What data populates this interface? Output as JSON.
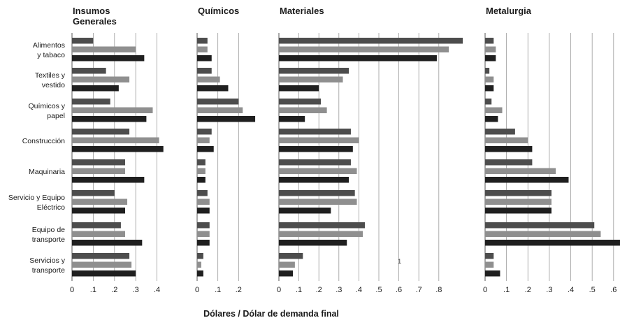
{
  "chart_data": {
    "type": "bar",
    "orientation": "horizontal",
    "xlabel": "Dólares / Dólar de demanda final",
    "categories": [
      "Alimentos y tabaco",
      "Textiles y vestido",
      "Químicos y papel",
      "Construcción",
      "Maquinaria",
      "Servicio y Equipo Eléctrico",
      "Equipo de transporte",
      "Servicios y transporte"
    ],
    "category_lines": [
      [
        "Alimentos",
        "y tabaco"
      ],
      [
        "Textiles y",
        "vestido"
      ],
      [
        "Químicos y",
        "papel"
      ],
      [
        "Construcción"
      ],
      [
        "Maquinaria"
      ],
      [
        "Servicio y Equipo",
        "Eléctrico"
      ],
      [
        "Equipo de",
        "transporte"
      ],
      [
        "Servicios y",
        "transporte"
      ]
    ],
    "series_colors": [
      "#4d4d4d",
      "#8f8f8f",
      "#1f1f1f"
    ],
    "stray_annotation": "1",
    "panels": [
      {
        "title_lines": [
          "Insumos",
          "Generales"
        ],
        "xlim": [
          0,
          0.5
        ],
        "ticks": [
          0,
          0.1,
          0.2,
          0.3,
          0.4
        ],
        "tick_labels": [
          "0",
          ".1",
          ".2",
          ".3",
          ".4"
        ],
        "series": [
          {
            "values": [
              0.1,
              0.16,
              0.18,
              0.27,
              0.25,
              0.2,
              0.23,
              0.27
            ]
          },
          {
            "values": [
              0.3,
              0.27,
              0.38,
              0.41,
              0.25,
              0.26,
              0.25,
              0.28
            ]
          },
          {
            "values": [
              0.34,
              0.22,
              0.35,
              0.43,
              0.34,
              0.25,
              0.33,
              0.3
            ]
          }
        ]
      },
      {
        "title_lines": [
          "Químicos"
        ],
        "xlim": [
          0,
          0.3
        ],
        "ticks": [
          0,
          0.1,
          0.2
        ],
        "tick_labels": [
          "0",
          ".1",
          ".2"
        ],
        "series": [
          {
            "values": [
              0.05,
              0.07,
              0.2,
              0.07,
              0.04,
              0.05,
              0.06,
              0.03
            ]
          },
          {
            "values": [
              0.05,
              0.11,
              0.22,
              0.06,
              0.04,
              0.06,
              0.06,
              0.02
            ]
          },
          {
            "values": [
              0.07,
              0.15,
              0.28,
              0.08,
              0.04,
              0.06,
              0.06,
              0.03
            ]
          }
        ]
      },
      {
        "title_lines": [
          "Materiales"
        ],
        "xlim": [
          0,
          1.0
        ],
        "ticks": [
          0,
          0.1,
          0.2,
          0.3,
          0.4,
          0.5,
          0.6,
          0.7,
          0.8
        ],
        "tick_labels": [
          "0",
          ".1",
          ".2",
          ".3",
          ".4",
          ".5",
          ".6",
          ".7",
          ".8"
        ],
        "series": [
          {
            "values": [
              0.92,
              0.35,
              0.21,
              0.36,
              0.36,
              0.38,
              0.43,
              0.12
            ]
          },
          {
            "values": [
              0.85,
              0.32,
              0.24,
              0.4,
              0.39,
              0.39,
              0.42,
              0.08
            ]
          },
          {
            "values": [
              0.79,
              0.2,
              0.13,
              0.37,
              0.35,
              0.26,
              0.34,
              0.07
            ]
          }
        ]
      },
      {
        "title_lines": [
          "Metalurgia"
        ],
        "xlim": [
          0,
          0.63
        ],
        "ticks": [
          0,
          0.1,
          0.2,
          0.3,
          0.4,
          0.5,
          0.6
        ],
        "tick_labels": [
          "0",
          ".1",
          ".2",
          ".3",
          ".4",
          ".5",
          ".6"
        ],
        "series": [
          {
            "values": [
              0.04,
              0.02,
              0.03,
              0.14,
              0.22,
              0.31,
              0.51,
              0.04
            ]
          },
          {
            "values": [
              0.05,
              0.04,
              0.08,
              0.2,
              0.33,
              0.31,
              0.54,
              0.04
            ]
          },
          {
            "values": [
              0.05,
              0.04,
              0.06,
              0.22,
              0.39,
              0.31,
              0.63,
              0.07
            ]
          }
        ]
      }
    ]
  }
}
